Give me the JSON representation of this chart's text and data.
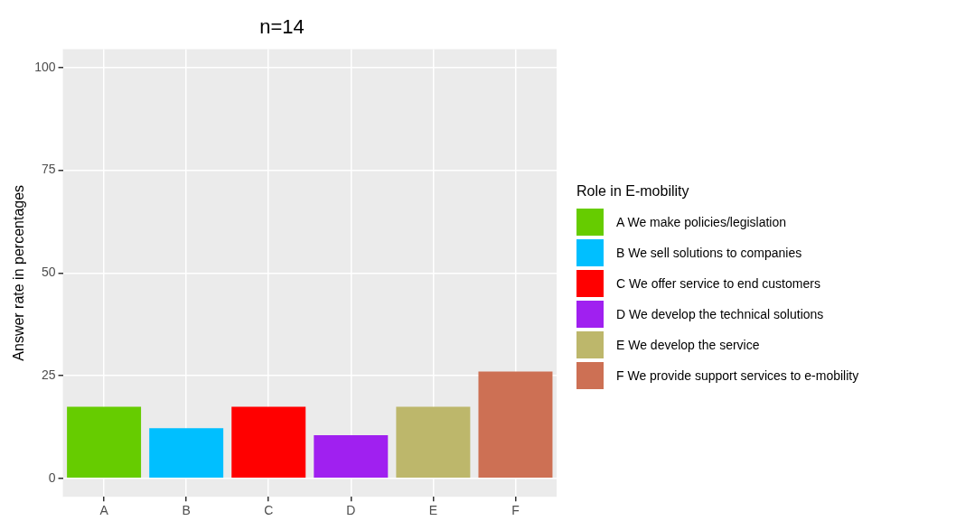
{
  "chart_data": {
    "type": "bar",
    "title": "n=14",
    "ylabel": "Answer rate in percentages",
    "legend_title": "Role in E-mobility",
    "categories": [
      "A",
      "B",
      "C",
      "D",
      "E",
      "F"
    ],
    "series": [
      {
        "name": "A We make policies/legislation",
        "color": "#66cc00",
        "values": [
          17.4,
          null,
          null,
          null,
          null,
          null
        ]
      },
      {
        "name": "B We sell solutions to companies",
        "color": "#00bfff",
        "values": [
          null,
          12.2,
          null,
          null,
          null,
          null
        ]
      },
      {
        "name": "C We offer service to end customers",
        "color": "#ff0000",
        "values": [
          null,
          null,
          17.4,
          null,
          null,
          null
        ]
      },
      {
        "name": "D We develop the technical solutions",
        "color": "#a020f0",
        "values": [
          null,
          null,
          null,
          10.5,
          null,
          null
        ]
      },
      {
        "name": "E We develop the service",
        "color": "#bdb76b",
        "values": [
          null,
          null,
          null,
          null,
          17.4,
          null
        ]
      },
      {
        "name": "F We provide support services to e-mobility",
        "color": "#cd7054",
        "values": [
          null,
          null,
          null,
          null,
          null,
          26.0
        ]
      }
    ],
    "ylim": [
      -4.5,
      104.5
    ],
    "yticks": [
      0,
      25,
      50,
      75,
      100
    ],
    "grid": true,
    "legend": "right"
  }
}
